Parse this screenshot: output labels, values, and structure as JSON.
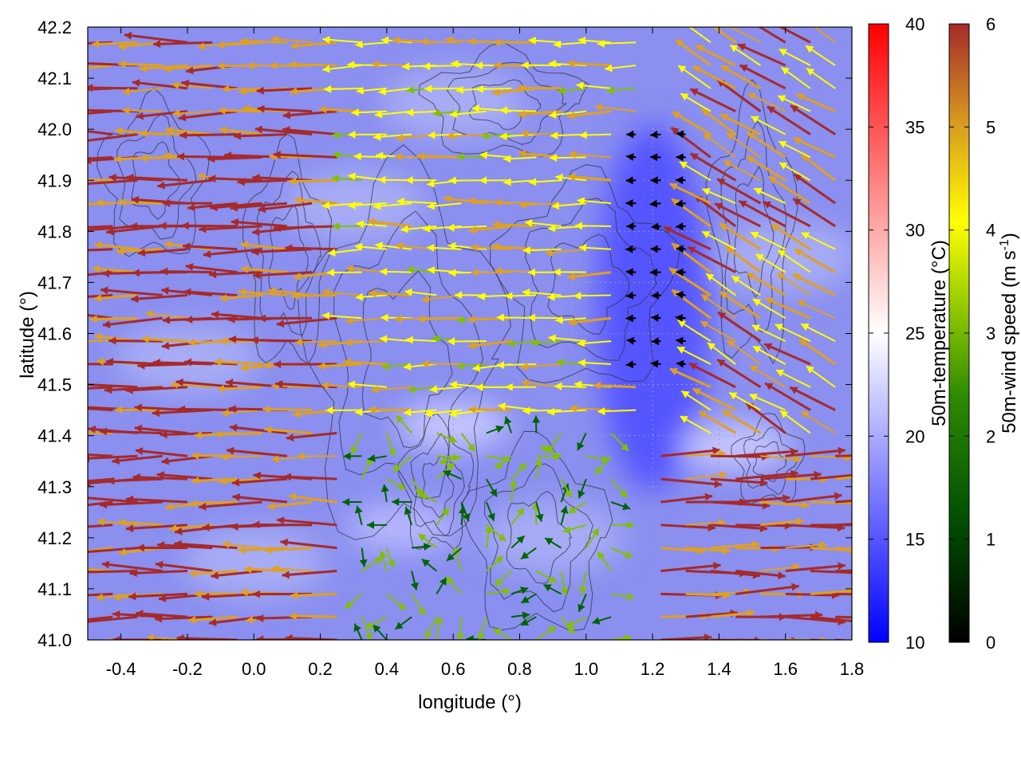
{
  "chart_data": {
    "type": "heatmap",
    "subtype": "vector-field-over-scalar-field-with-contours",
    "xlabel": "longitude (°)",
    "ylabel": "latitude (°)",
    "xlim": [
      -0.5,
      1.8
    ],
    "ylim": [
      41.0,
      42.2
    ],
    "x_ticks": [
      -0.4,
      -0.2,
      0.0,
      0.2,
      0.4,
      0.6,
      0.8,
      1.0,
      1.2,
      1.4,
      1.6,
      1.8
    ],
    "y_ticks": [
      41.0,
      41.1,
      41.2,
      41.3,
      41.4,
      41.5,
      41.6,
      41.7,
      41.8,
      41.9,
      42.0,
      42.1,
      42.2
    ],
    "x_tick_labels": [
      "-0.4",
      "-0.2",
      "0.0",
      "0.2",
      "0.4",
      "0.6",
      "0.8",
      "1.0",
      "1.2",
      "1.4",
      "1.6",
      "1.8"
    ],
    "y_tick_labels": [
      "41.0",
      "41.1",
      "41.2",
      "41.3",
      "41.4",
      "41.5",
      "41.6",
      "41.7",
      "41.8",
      "41.9",
      "42.0",
      "42.1",
      "42.2"
    ],
    "grid": true,
    "temperature_colorbar": {
      "label": "50m-temperature (°C)",
      "range": [
        10,
        40
      ],
      "ticks": [
        10,
        15,
        20,
        25,
        30,
        35,
        40
      ],
      "tick_labels": [
        "10",
        "15",
        "20",
        "25",
        "30",
        "35",
        "40"
      ],
      "colors": [
        "#0000ff",
        "#ffffff",
        "#ff0000"
      ]
    },
    "wind_colorbar": {
      "label": "50m-wind speed (m s",
      "label_sup": "-1",
      "label_end": ")",
      "range": [
        0,
        6
      ],
      "ticks": [
        0,
        1,
        2,
        3,
        4,
        5,
        6
      ],
      "tick_labels": [
        "0",
        "1",
        "2",
        "3",
        "4",
        "5",
        "6"
      ],
      "colors": [
        "#000000",
        "#006400",
        "#80c000",
        "#ffff00",
        "#e0a020",
        "#a52a2a"
      ]
    },
    "temperature_field_approx": {
      "description_values_degC": [
        15,
        22
      ],
      "cold_core": {
        "lon": 1.2,
        "lat": 41.65,
        "value": 15
      },
      "warm_patches": [
        {
          "lon": 0.6,
          "lat": 41.42,
          "value": 22
        },
        {
          "lon": 1.45,
          "lat": 41.38,
          "value": 22
        },
        {
          "lon": 0.45,
          "lat": 41.22,
          "value": 21
        }
      ]
    },
    "wind_regions": [
      {
        "lon_range": [
          -0.5,
          0.3
        ],
        "lat_range": [
          41.0,
          42.2
        ],
        "direction": "west",
        "speed": 6
      },
      {
        "lon_range": [
          0.3,
          1.2
        ],
        "lat_range": [
          41.45,
          42.2
        ],
        "direction": "west",
        "speed": 4
      },
      {
        "lon_range": [
          1.1,
          1.3
        ],
        "lat_range": [
          41.5,
          42.0
        ],
        "direction": "calm",
        "speed": 0.5
      },
      {
        "lon_range": [
          1.3,
          1.8
        ],
        "lat_range": [
          41.4,
          42.2
        ],
        "direction": "northwest",
        "speed": 5
      },
      {
        "lon_range": [
          1.2,
          1.8
        ],
        "lat_range": [
          41.0,
          41.4
        ],
        "direction": "east",
        "speed": 6
      },
      {
        "lon_range": [
          0.3,
          1.1
        ],
        "lat_range": [
          41.0,
          41.45
        ],
        "direction": "variable",
        "speed": 2
      }
    ]
  }
}
